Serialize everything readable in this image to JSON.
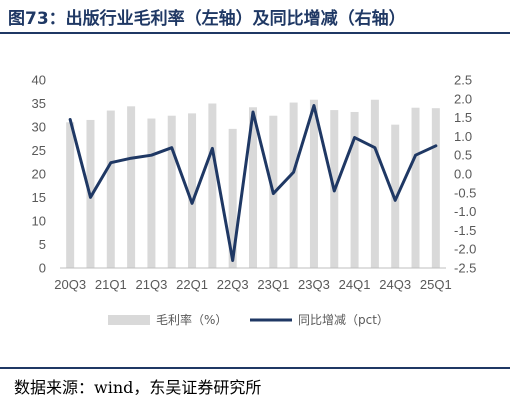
{
  "title": "图73：出版行业毛利率（左轴）及同比增减（右轴）",
  "source": "数据来源：wind，东吴证券研究所",
  "chart_data": {
    "type": "bar+line",
    "categories": [
      "20Q3",
      "20Q4",
      "21Q1",
      "21Q2",
      "21Q3",
      "21Q4",
      "22Q1",
      "22Q2",
      "22Q3",
      "22Q4",
      "23Q1",
      "23Q2",
      "23Q3",
      "23Q4",
      "24Q1",
      "24Q2",
      "24Q3",
      "24Q4",
      "25Q1"
    ],
    "x_tick_labels": [
      "20Q3",
      "21Q1",
      "21Q3",
      "22Q1",
      "22Q3",
      "23Q1",
      "23Q3",
      "24Q1",
      "24Q3",
      "25Q1"
    ],
    "series": [
      {
        "name": "毛利率（%）",
        "type": "bar",
        "axis": "left",
        "color": "#d9d9d9",
        "values": [
          31.0,
          31.5,
          33.5,
          34.4,
          31.8,
          32.4,
          32.9,
          35.0,
          29.6,
          34.2,
          32.4,
          35.2,
          35.8,
          33.6,
          33.2,
          35.8,
          30.5,
          34.1,
          34.0
        ]
      },
      {
        "name": "同比增减（pct）",
        "type": "line",
        "axis": "right",
        "color": "#1f3864",
        "values": [
          1.45,
          -0.62,
          0.3,
          0.42,
          0.5,
          0.7,
          -0.78,
          0.68,
          -2.3,
          1.65,
          -0.52,
          0.05,
          1.82,
          -0.45,
          0.97,
          0.7,
          -0.7,
          0.5,
          0.75
        ]
      }
    ],
    "y_left": {
      "min": 0,
      "max": 40,
      "step": 5,
      "tick_labels": [
        "0",
        "5",
        "10",
        "15",
        "20",
        "25",
        "30",
        "35",
        "40"
      ]
    },
    "y_right": {
      "min": -2.5,
      "max": 2.5,
      "step": 0.5,
      "tick_labels": [
        "-2.5",
        "-2.0",
        "-1.5",
        "-1.0",
        "-0.5",
        "0.0",
        "0.5",
        "1.0",
        "1.5",
        "2.0",
        "2.5"
      ]
    },
    "grid": false,
    "legend_position": "bottom"
  }
}
